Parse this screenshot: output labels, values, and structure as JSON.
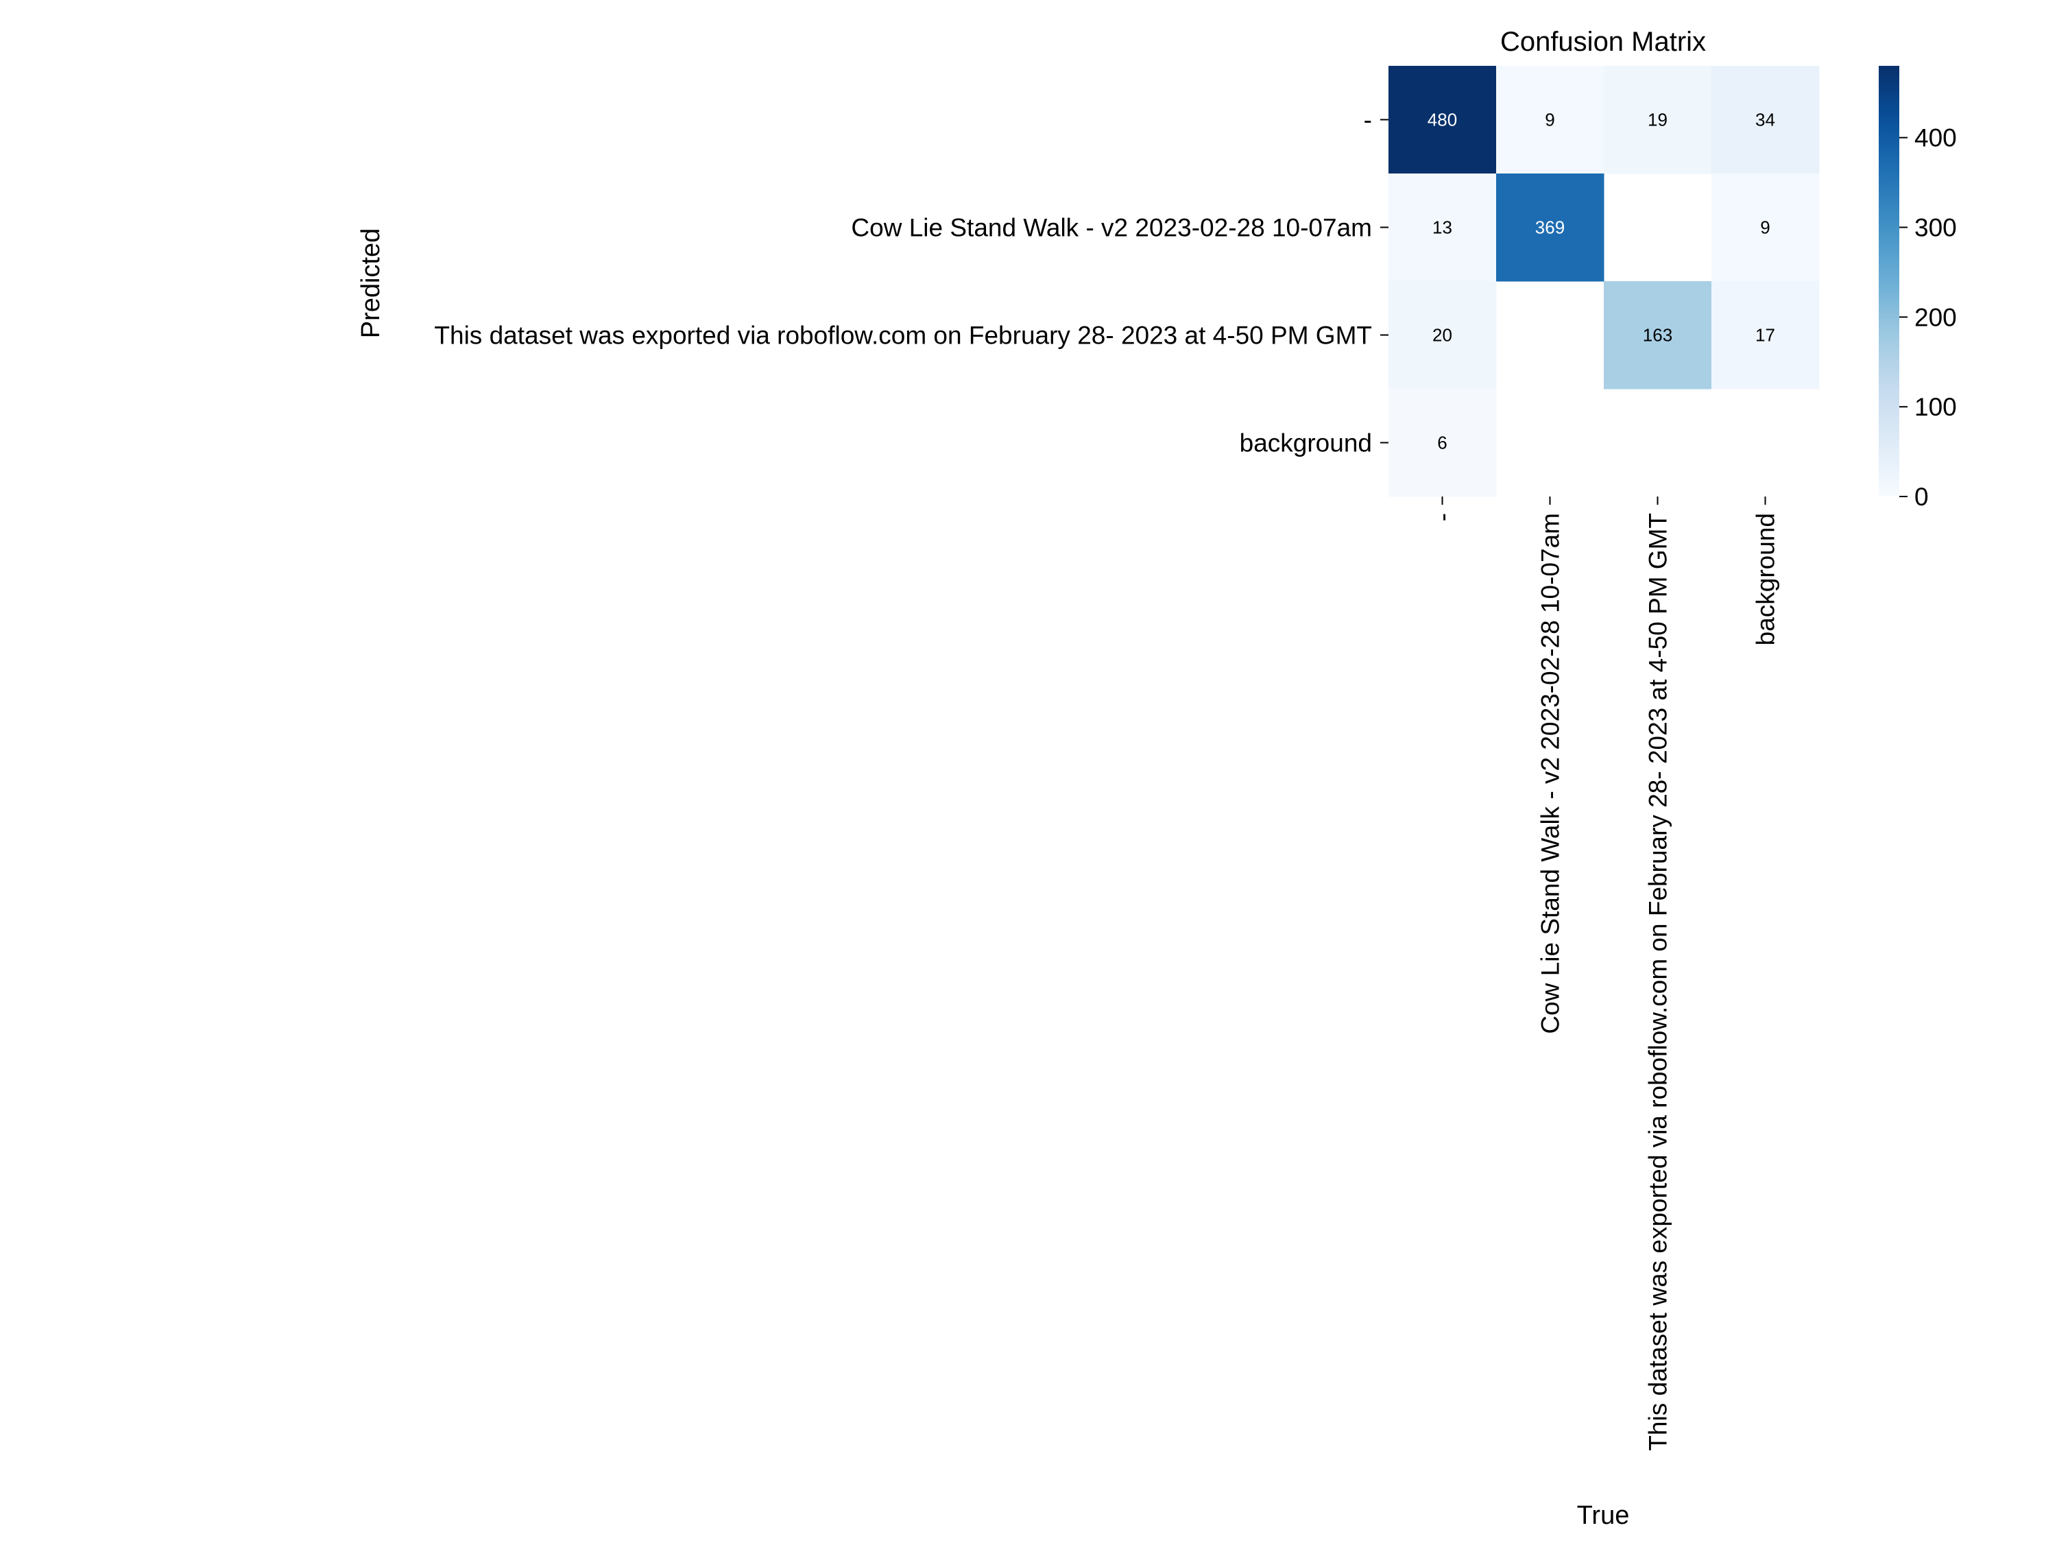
{
  "chart_data": {
    "type": "heatmap",
    "title": "Confusion Matrix",
    "xlabel": "True",
    "ylabel": "Predicted",
    "x_categories": [
      "-",
      "Cow Lie Stand Walk - v2 2023-02-28 10-07am",
      "This dataset was exported via roboflow.com on February 28- 2023 at 4-50 PM GMT",
      "background"
    ],
    "y_categories": [
      "-",
      "Cow Lie Stand Walk - v2 2023-02-28 10-07am",
      "This dataset was exported via roboflow.com on February 28- 2023 at 4-50 PM GMT",
      "background"
    ],
    "values": [
      [
        480,
        9,
        19,
        34
      ],
      [
        13,
        369,
        null,
        9
      ],
      [
        20,
        null,
        163,
        17
      ],
      [
        6,
        null,
        null,
        null
      ]
    ],
    "colorbar": {
      "colormap": "Blues",
      "range": [
        0,
        480
      ],
      "ticks": [
        "0",
        "100",
        "200",
        "300",
        "400"
      ]
    },
    "grid": false
  }
}
